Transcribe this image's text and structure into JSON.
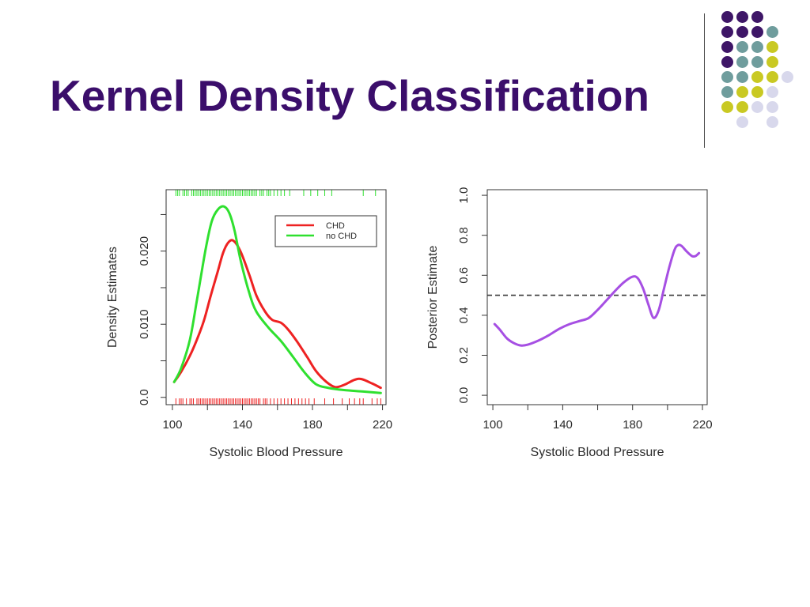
{
  "slide": {
    "title": "Kernel Density Classification"
  },
  "palette": {
    "title": "#3b0e6b",
    "divider": "#444444",
    "dot_purple": "#3e1667",
    "dot_teal": "#6f9d9d",
    "dot_yellow": "#c9c923",
    "dot_lavender": "#d8d8ec"
  },
  "chart_data": [
    {
      "type": "line",
      "xlabel": "Systolic Blood Pressure",
      "ylabel": "Density Estimates",
      "xlim": [
        96.4,
        222.0
      ],
      "ylim": [
        -0.001,
        0.0284
      ],
      "grid": false,
      "xticks": [
        100,
        120,
        140,
        160,
        180,
        200,
        220
      ],
      "xtick_labels": [
        {
          "value": 100,
          "text": "100"
        },
        {
          "value": 140,
          "text": "140"
        },
        {
          "value": 180,
          "text": "180"
        },
        {
          "value": 220,
          "text": "220"
        }
      ],
      "yticks": [
        0,
        0.005,
        0.01,
        0.015,
        0.02,
        0.025
      ],
      "ytick_labels": [
        {
          "value": 0,
          "text": "0.0"
        },
        {
          "value": 0.01,
          "text": "0.010"
        },
        {
          "value": 0.02,
          "text": "0.020"
        }
      ],
      "legend": {
        "position": "top-right"
      },
      "series": [
        {
          "name": "CHD",
          "color": "#ee2222",
          "x": [
            101,
            105,
            110,
            114,
            118,
            122,
            126,
            129,
            132,
            135,
            139,
            144,
            148,
            153,
            157,
            162,
            166,
            171,
            177,
            182,
            188,
            193,
            198,
            204,
            208,
            214,
            219
          ],
          "y": [
            0.0021,
            0.0035,
            0.0057,
            0.0079,
            0.0105,
            0.014,
            0.0173,
            0.0198,
            0.0212,
            0.0214,
            0.0199,
            0.0167,
            0.0139,
            0.0117,
            0.0106,
            0.0102,
            0.0093,
            0.0077,
            0.0055,
            0.0036,
            0.0021,
            0.0014,
            0.0017,
            0.0024,
            0.0025,
            0.0019,
            0.0013
          ],
          "rug": [
            102,
            104,
            105,
            106,
            108,
            110,
            111,
            112,
            114,
            115,
            116,
            117,
            118,
            119,
            120,
            121,
            122,
            123,
            124,
            125,
            126,
            127,
            128,
            129,
            130,
            131,
            132,
            133,
            134,
            135,
            136,
            137,
            138,
            139,
            140,
            141,
            142,
            143,
            144,
            145,
            146,
            147,
            148,
            149,
            150,
            152,
            153,
            154,
            156,
            158,
            160,
            162,
            164,
            166,
            168,
            170,
            172,
            174,
            176,
            178,
            181,
            187,
            192,
            197,
            201,
            204,
            207,
            209,
            214,
            217,
            219
          ],
          "rug_side": "bottom"
        },
        {
          "name": "no CHD",
          "color": "#2fe02f",
          "x": [
            101,
            105,
            110,
            114,
            119,
            122.5,
            126,
            129.5,
            132.5,
            135.5,
            139,
            144,
            148,
            155,
            162,
            169,
            175.5,
            182,
            189,
            198,
            209,
            219
          ],
          "y": [
            0.0021,
            0.004,
            0.0079,
            0.0133,
            0.0203,
            0.0241,
            0.0257,
            0.0261,
            0.0252,
            0.0228,
            0.0187,
            0.0142,
            0.0117,
            0.0095,
            0.0077,
            0.0055,
            0.0034,
            0.0018,
            0.0013,
            0.001,
            0.0008,
            0.0006
          ],
          "rug": [
            102,
            103,
            104,
            106,
            107,
            108,
            109,
            111,
            112,
            113,
            114,
            115,
            116,
            117,
            118,
            119,
            120,
            121,
            122,
            123,
            124,
            125,
            126,
            127,
            128,
            129,
            130,
            131,
            132,
            133,
            134,
            135,
            136,
            137,
            138,
            139,
            140,
            141,
            142,
            143,
            144,
            145,
            146,
            147,
            148,
            150,
            151,
            152,
            154,
            155,
            156,
            158,
            160,
            162,
            164,
            167,
            175,
            179,
            183,
            187,
            191,
            209,
            216
          ],
          "rug_side": "top"
        }
      ]
    },
    {
      "type": "line",
      "xlabel": "Systolic Blood Pressure",
      "ylabel": "Posterior Estimate",
      "xlim": [
        96.8,
        222.7
      ],
      "ylim": [
        -0.047,
        1.028
      ],
      "grid": false,
      "xticks": [
        100,
        120,
        140,
        160,
        180,
        200,
        220
      ],
      "xtick_labels": [
        {
          "value": 100,
          "text": "100"
        },
        {
          "value": 140,
          "text": "140"
        },
        {
          "value": 180,
          "text": "180"
        },
        {
          "value": 220,
          "text": "220"
        }
      ],
      "yticks": [
        0,
        0.2,
        0.4,
        0.6,
        0.8,
        1.0
      ],
      "ytick_labels": [
        {
          "value": 0,
          "text": "0.0"
        },
        {
          "value": 0.2,
          "text": "0.2"
        },
        {
          "value": 0.4,
          "text": "0.4"
        },
        {
          "value": 0.6,
          "text": "0.6"
        },
        {
          "value": 0.8,
          "text": "0.8"
        },
        {
          "value": 1.0,
          "text": "1.0"
        }
      ],
      "series": [
        {
          "color": "#a64fe3",
          "x": [
            101,
            104,
            108,
            112,
            116,
            120,
            126,
            132,
            138,
            144,
            150,
            155,
            160,
            165,
            170,
            175,
            180,
            183,
            186,
            189,
            192,
            195,
            198,
            201,
            204,
            206,
            208,
            211,
            214,
            216,
            218
          ],
          "y": [
            0.356,
            0.328,
            0.285,
            0.261,
            0.249,
            0.253,
            0.273,
            0.3,
            0.332,
            0.356,
            0.372,
            0.387,
            0.427,
            0.474,
            0.522,
            0.565,
            0.593,
            0.585,
            0.534,
            0.455,
            0.387,
            0.427,
            0.534,
            0.64,
            0.727,
            0.751,
            0.747,
            0.719,
            0.696,
            0.696,
            0.711
          ]
        }
      ],
      "hlines": [
        {
          "y": 0.5,
          "dashed": true,
          "color": "#3a3a3a"
        }
      ]
    }
  ]
}
